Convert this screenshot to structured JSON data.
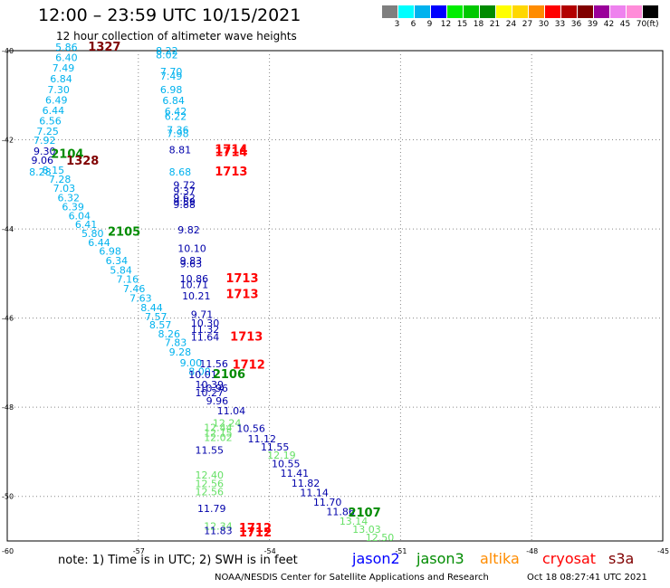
{
  "header": {
    "title": "12:00 – 23:59 UTC 10/15/2021",
    "subtitle": "12 hour collection of altimeter wave heights"
  },
  "color_scale": {
    "swatches": [
      {
        "color": "#7f7f7f",
        "label": "3"
      },
      {
        "color": "#00ffff",
        "label": "6"
      },
      {
        "color": "#00b2ee",
        "label": "9"
      },
      {
        "color": "#0000ff",
        "label": "12"
      },
      {
        "color": "#00ee00",
        "label": "15"
      },
      {
        "color": "#00c800",
        "label": "18"
      },
      {
        "color": "#008b00",
        "label": "21"
      },
      {
        "color": "#ffff00",
        "label": "24"
      },
      {
        "color": "#ffd700",
        "label": "27"
      },
      {
        "color": "#ff8c00",
        "label": "30"
      },
      {
        "color": "#ff0000",
        "label": "33"
      },
      {
        "color": "#b30000",
        "label": "36"
      },
      {
        "color": "#800000",
        "label": "39"
      },
      {
        "color": "#9a009a",
        "label": "42"
      },
      {
        "color": "#ee82ee",
        "label": "45"
      },
      {
        "color": "#ff8cd9",
        "label": "70"
      },
      {
        "color": "#000000",
        "label": ""
      }
    ],
    "unit": "(ft)"
  },
  "map": {
    "lat_labels": [
      "-40",
      "-42",
      "-44",
      "-46",
      "-48",
      "-50"
    ],
    "lon_labels": [
      "-60",
      "-57",
      "-54",
      "-51",
      "-48",
      "-45"
    ]
  },
  "legend": {
    "note": "note:  1) Time is in UTC;  2) SWH is in feet",
    "satellites": [
      {
        "name": "jason2",
        "color": "#0000ff"
      },
      {
        "name": "jason3",
        "color": "#008b00"
      },
      {
        "name": "altika",
        "color": "#ff8c00"
      },
      {
        "name": "cryosat",
        "color": "#ff0000"
      },
      {
        "name": "s3a",
        "color": "#800000"
      }
    ]
  },
  "footer": {
    "credit": "NOAA/NESDIS Center for Satellite Applications and Research",
    "timestamp": "Oct 18 08:27:41 UTC 2021"
  },
  "track_colors": {
    "c6": "#00b2ee",
    "c9": "#00b2ee",
    "c12": "#0000aa",
    "c15": "#66e066",
    "time_green": "#008b00",
    "time_red": "#ff0000",
    "time_maroon": "#800000"
  },
  "observations": [
    {
      "v": "5.86",
      "c": "c6",
      "lon": -58.9,
      "lat": -40.0
    },
    {
      "v": "6.40",
      "c": "c6",
      "lon": -58.9,
      "lat": -40.23
    },
    {
      "v": "7.49",
      "c": "c6",
      "lon": -58.97,
      "lat": -40.47
    },
    {
      "v": "6.84",
      "c": "c6",
      "lon": -59.02,
      "lat": -40.71
    },
    {
      "v": "7.30",
      "c": "c6",
      "lon": -59.08,
      "lat": -40.95
    },
    {
      "v": "6.49",
      "c": "c6",
      "lon": -59.13,
      "lat": -41.19
    },
    {
      "v": "6.44",
      "c": "c6",
      "lon": -59.2,
      "lat": -41.42
    },
    {
      "v": "6.56",
      "c": "c6",
      "lon": -59.27,
      "lat": -41.65
    },
    {
      "v": "7.25",
      "c": "c6",
      "lon": -59.33,
      "lat": -41.89
    },
    {
      "v": "7.92",
      "c": "c6",
      "lon": -59.4,
      "lat": -42.09
    },
    {
      "v": "9.30",
      "c": "c12",
      "lon": -59.4,
      "lat": -42.33
    },
    {
      "v": "9.06",
      "c": "c12",
      "lon": -59.45,
      "lat": -42.54
    },
    {
      "v": "8.15",
      "c": "c6",
      "lon": -59.2,
      "lat": -42.76
    },
    {
      "v": "8.28",
      "c": "c6",
      "lon": -59.5,
      "lat": -42.8
    },
    {
      "v": "7.28",
      "c": "c6",
      "lon": -59.05,
      "lat": -42.96
    },
    {
      "v": "7.03",
      "c": "c6",
      "lon": -58.95,
      "lat": -43.17
    },
    {
      "v": "6.32",
      "c": "c6",
      "lon": -58.85,
      "lat": -43.38
    },
    {
      "v": "6.39",
      "c": "c6",
      "lon": -58.75,
      "lat": -43.58
    },
    {
      "v": "6.04",
      "c": "c6",
      "lon": -58.6,
      "lat": -43.78
    },
    {
      "v": "6.41",
      "c": "c6",
      "lon": -58.45,
      "lat": -43.98
    },
    {
      "v": "5.80",
      "c": "c6",
      "lon": -58.3,
      "lat": -44.18
    },
    {
      "v": "6.44",
      "c": "c6",
      "lon": -58.15,
      "lat": -44.38
    },
    {
      "v": "6.98",
      "c": "c6",
      "lon": -57.9,
      "lat": -44.58
    },
    {
      "v": "6.34",
      "c": "c6",
      "lon": -57.75,
      "lat": -44.79
    },
    {
      "v": "5.84",
      "c": "c6",
      "lon": -57.65,
      "lat": -45.0
    },
    {
      "v": "7.16",
      "c": "c6",
      "lon": -57.5,
      "lat": -45.21
    },
    {
      "v": "7.46",
      "c": "c6",
      "lon": -57.35,
      "lat": -45.42
    },
    {
      "v": "7.63",
      "c": "c6",
      "lon": -57.2,
      "lat": -45.63
    },
    {
      "v": "8.44",
      "c": "c6",
      "lon": -56.95,
      "lat": -45.85
    },
    {
      "v": "7.57",
      "c": "c6",
      "lon": -56.85,
      "lat": -46.05
    },
    {
      "v": "8.57",
      "c": "c6",
      "lon": -56.75,
      "lat": -46.23
    },
    {
      "v": "8.26",
      "c": "c6",
      "lon": -56.55,
      "lat": -46.43
    },
    {
      "v": "7.83",
      "c": "c6",
      "lon": -56.4,
      "lat": -46.63
    },
    {
      "v": "9.28",
      "c": "c9",
      "lon": -56.3,
      "lat": -46.84
    },
    {
      "v": "9.00",
      "c": "c9",
      "lon": -56.05,
      "lat": -47.08
    },
    {
      "v": "8.00",
      "c": "c9",
      "lon": -55.85,
      "lat": -47.28
    },
    {
      "v": "8.22",
      "c": "c6",
      "lon": -56.6,
      "lat": -40.08
    },
    {
      "v": "8.02",
      "c": "c6",
      "lon": -56.6,
      "lat": -40.17
    },
    {
      "v": "7.70",
      "c": "c6",
      "lon": -56.5,
      "lat": -40.55
    },
    {
      "v": "7.49",
      "c": "c6",
      "lon": -56.5,
      "lat": -40.65
    },
    {
      "v": "6.98",
      "c": "c6",
      "lon": -56.5,
      "lat": -40.95
    },
    {
      "v": "6.84",
      "c": "c6",
      "lon": -56.45,
      "lat": -41.2
    },
    {
      "v": "6.42",
      "c": "c6",
      "lon": -56.4,
      "lat": -41.44
    },
    {
      "v": "6.22",
      "c": "c6",
      "lon": -56.4,
      "lat": -41.55
    },
    {
      "v": "7.36",
      "c": "c6",
      "lon": -56.35,
      "lat": -41.86
    },
    {
      "v": "7.98",
      "c": "c6",
      "lon": -56.35,
      "lat": -41.94
    },
    {
      "v": "8.81",
      "c": "c12",
      "lon": -56.3,
      "lat": -42.3
    },
    {
      "v": "8.68",
      "c": "c9",
      "lon": -56.3,
      "lat": -42.8
    },
    {
      "v": "9.72",
      "c": "c12",
      "lon": -56.2,
      "lat": -43.1
    },
    {
      "v": "9.37",
      "c": "c12",
      "lon": -56.2,
      "lat": -43.23
    },
    {
      "v": "9.62",
      "c": "c12",
      "lon": -56.2,
      "lat": -43.38
    },
    {
      "v": "9.59",
      "c": "c12",
      "lon": -56.2,
      "lat": -43.47
    },
    {
      "v": "9.88",
      "c": "c12",
      "lon": -56.2,
      "lat": -43.53
    },
    {
      "v": "9.82",
      "c": "c12",
      "lon": -56.1,
      "lat": -44.1
    },
    {
      "v": "10.10",
      "c": "c12",
      "lon": -56.1,
      "lat": -44.52
    },
    {
      "v": "9.83",
      "c": "c12",
      "lon": -56.05,
      "lat": -44.79
    },
    {
      "v": "9.63",
      "c": "c12",
      "lon": -56.05,
      "lat": -44.86
    },
    {
      "v": "10.86",
      "c": "c12",
      "lon": -56.05,
      "lat": -45.2
    },
    {
      "v": "10.71",
      "c": "c12",
      "lon": -56.05,
      "lat": -45.33
    },
    {
      "v": "10.21",
      "c": "c12",
      "lon": -56.0,
      "lat": -45.58
    },
    {
      "v": "9.71",
      "c": "c12",
      "lon": -55.8,
      "lat": -46.0
    },
    {
      "v": "10.30",
      "c": "c12",
      "lon": -55.8,
      "lat": -46.19
    },
    {
      "v": "11.32",
      "c": "c12",
      "lon": -55.8,
      "lat": -46.33
    },
    {
      "v": "11.64",
      "c": "c12",
      "lon": -55.8,
      "lat": -46.5
    },
    {
      "v": "11.56",
      "c": "c12",
      "lon": -55.6,
      "lat": -47.1
    },
    {
      "v": "10.01",
      "c": "c12",
      "lon": -55.85,
      "lat": -47.35
    },
    {
      "v": "10.39",
      "c": "c12",
      "lon": -55.7,
      "lat": -47.57
    },
    {
      "v": "10.96",
      "c": "c12",
      "lon": -55.6,
      "lat": -47.65
    },
    {
      "v": "10.27",
      "c": "c12",
      "lon": -55.7,
      "lat": -47.75
    },
    {
      "v": "9.96",
      "c": "c12",
      "lon": -55.45,
      "lat": -47.94
    },
    {
      "v": "11.04",
      "c": "c12",
      "lon": -55.2,
      "lat": -48.16
    },
    {
      "v": "12.24",
      "c": "c15",
      "lon": -55.3,
      "lat": -48.43
    },
    {
      "v": "12.44",
      "c": "c15",
      "lon": -55.5,
      "lat": -48.53
    },
    {
      "v": "12.15",
      "c": "c15",
      "lon": -55.5,
      "lat": -48.66
    },
    {
      "v": "12.02",
      "c": "c15",
      "lon": -55.5,
      "lat": -48.76
    },
    {
      "v": "10.56",
      "c": "c12",
      "lon": -54.75,
      "lat": -48.55
    },
    {
      "v": "11.12",
      "c": "c12",
      "lon": -54.5,
      "lat": -48.79
    },
    {
      "v": "11.55",
      "c": "c12",
      "lon": -54.2,
      "lat": -48.97
    },
    {
      "v": "12.19",
      "c": "c15",
      "lon": -54.05,
      "lat": -49.15
    },
    {
      "v": "10.55",
      "c": "c12",
      "lon": -53.95,
      "lat": -49.35
    },
    {
      "v": "11.41",
      "c": "c12",
      "lon": -53.75,
      "lat": -49.56
    },
    {
      "v": "11.82",
      "c": "c12",
      "lon": -53.5,
      "lat": -49.78
    },
    {
      "v": "11.14",
      "c": "c12",
      "lon": -53.3,
      "lat": -50.0
    },
    {
      "v": "11.70",
      "c": "c12",
      "lon": -53.0,
      "lat": -50.21
    },
    {
      "v": "11.86",
      "c": "c12",
      "lon": -52.7,
      "lat": -50.42
    },
    {
      "v": "13.14",
      "c": "c15",
      "lon": -52.4,
      "lat": -50.63
    },
    {
      "v": "13.03",
      "c": "c15",
      "lon": -52.1,
      "lat": -50.82
    },
    {
      "v": "12.50",
      "c": "c15",
      "lon": -51.8,
      "lat": -51.0
    },
    {
      "v": "11.55",
      "c": "c12",
      "lon": -55.7,
      "lat": -49.04
    },
    {
      "v": "12.40",
      "c": "c15",
      "lon": -55.7,
      "lat": -49.6
    },
    {
      "v": "12.56",
      "c": "c15",
      "lon": -55.7,
      "lat": -49.79
    },
    {
      "v": "12.56",
      "c": "c15",
      "lon": -55.7,
      "lat": -49.98
    },
    {
      "v": "11.79",
      "c": "c12",
      "lon": -55.65,
      "lat": -50.35
    },
    {
      "v": "12.34",
      "c": "c15",
      "lon": -55.5,
      "lat": -50.75
    },
    {
      "v": "11.83",
      "c": "c12",
      "lon": -55.5,
      "lat": -50.85
    }
  ],
  "pass_times": [
    {
      "t": "1327",
      "c": "time_maroon",
      "lon": -58.15,
      "lat": -40.0
    },
    {
      "t": "2104",
      "c": "time_green",
      "lon": -59.0,
      "lat": -42.4
    },
    {
      "t": "1328",
      "c": "time_maroon",
      "lon": -58.65,
      "lat": -42.56
    },
    {
      "t": "1714",
      "c": "time_red",
      "lon": -55.25,
      "lat": -42.3
    },
    {
      "t": "1714",
      "c": "time_red",
      "lon": -55.25,
      "lat": -42.36
    },
    {
      "t": "1713",
      "c": "time_red",
      "lon": -55.25,
      "lat": -42.8
    },
    {
      "t": "2105",
      "c": "time_green",
      "lon": -57.7,
      "lat": -44.15
    },
    {
      "t": "1713",
      "c": "time_red",
      "lon": -55.0,
      "lat": -45.2
    },
    {
      "t": "1713",
      "c": "time_red",
      "lon": -55.0,
      "lat": -45.55
    },
    {
      "t": "1713",
      "c": "time_red",
      "lon": -54.9,
      "lat": -46.5
    },
    {
      "t": "1712",
      "c": "time_red",
      "lon": -54.85,
      "lat": -47.13
    },
    {
      "t": "2106",
      "c": "time_green",
      "lon": -55.3,
      "lat": -47.35
    },
    {
      "t": "2107",
      "c": "time_green",
      "lon": -52.2,
      "lat": -50.45
    },
    {
      "t": "1712",
      "c": "time_red",
      "lon": -54.7,
      "lat": -50.8
    },
    {
      "t": "1712",
      "c": "time_red",
      "lon": -54.7,
      "lat": -50.9
    }
  ]
}
